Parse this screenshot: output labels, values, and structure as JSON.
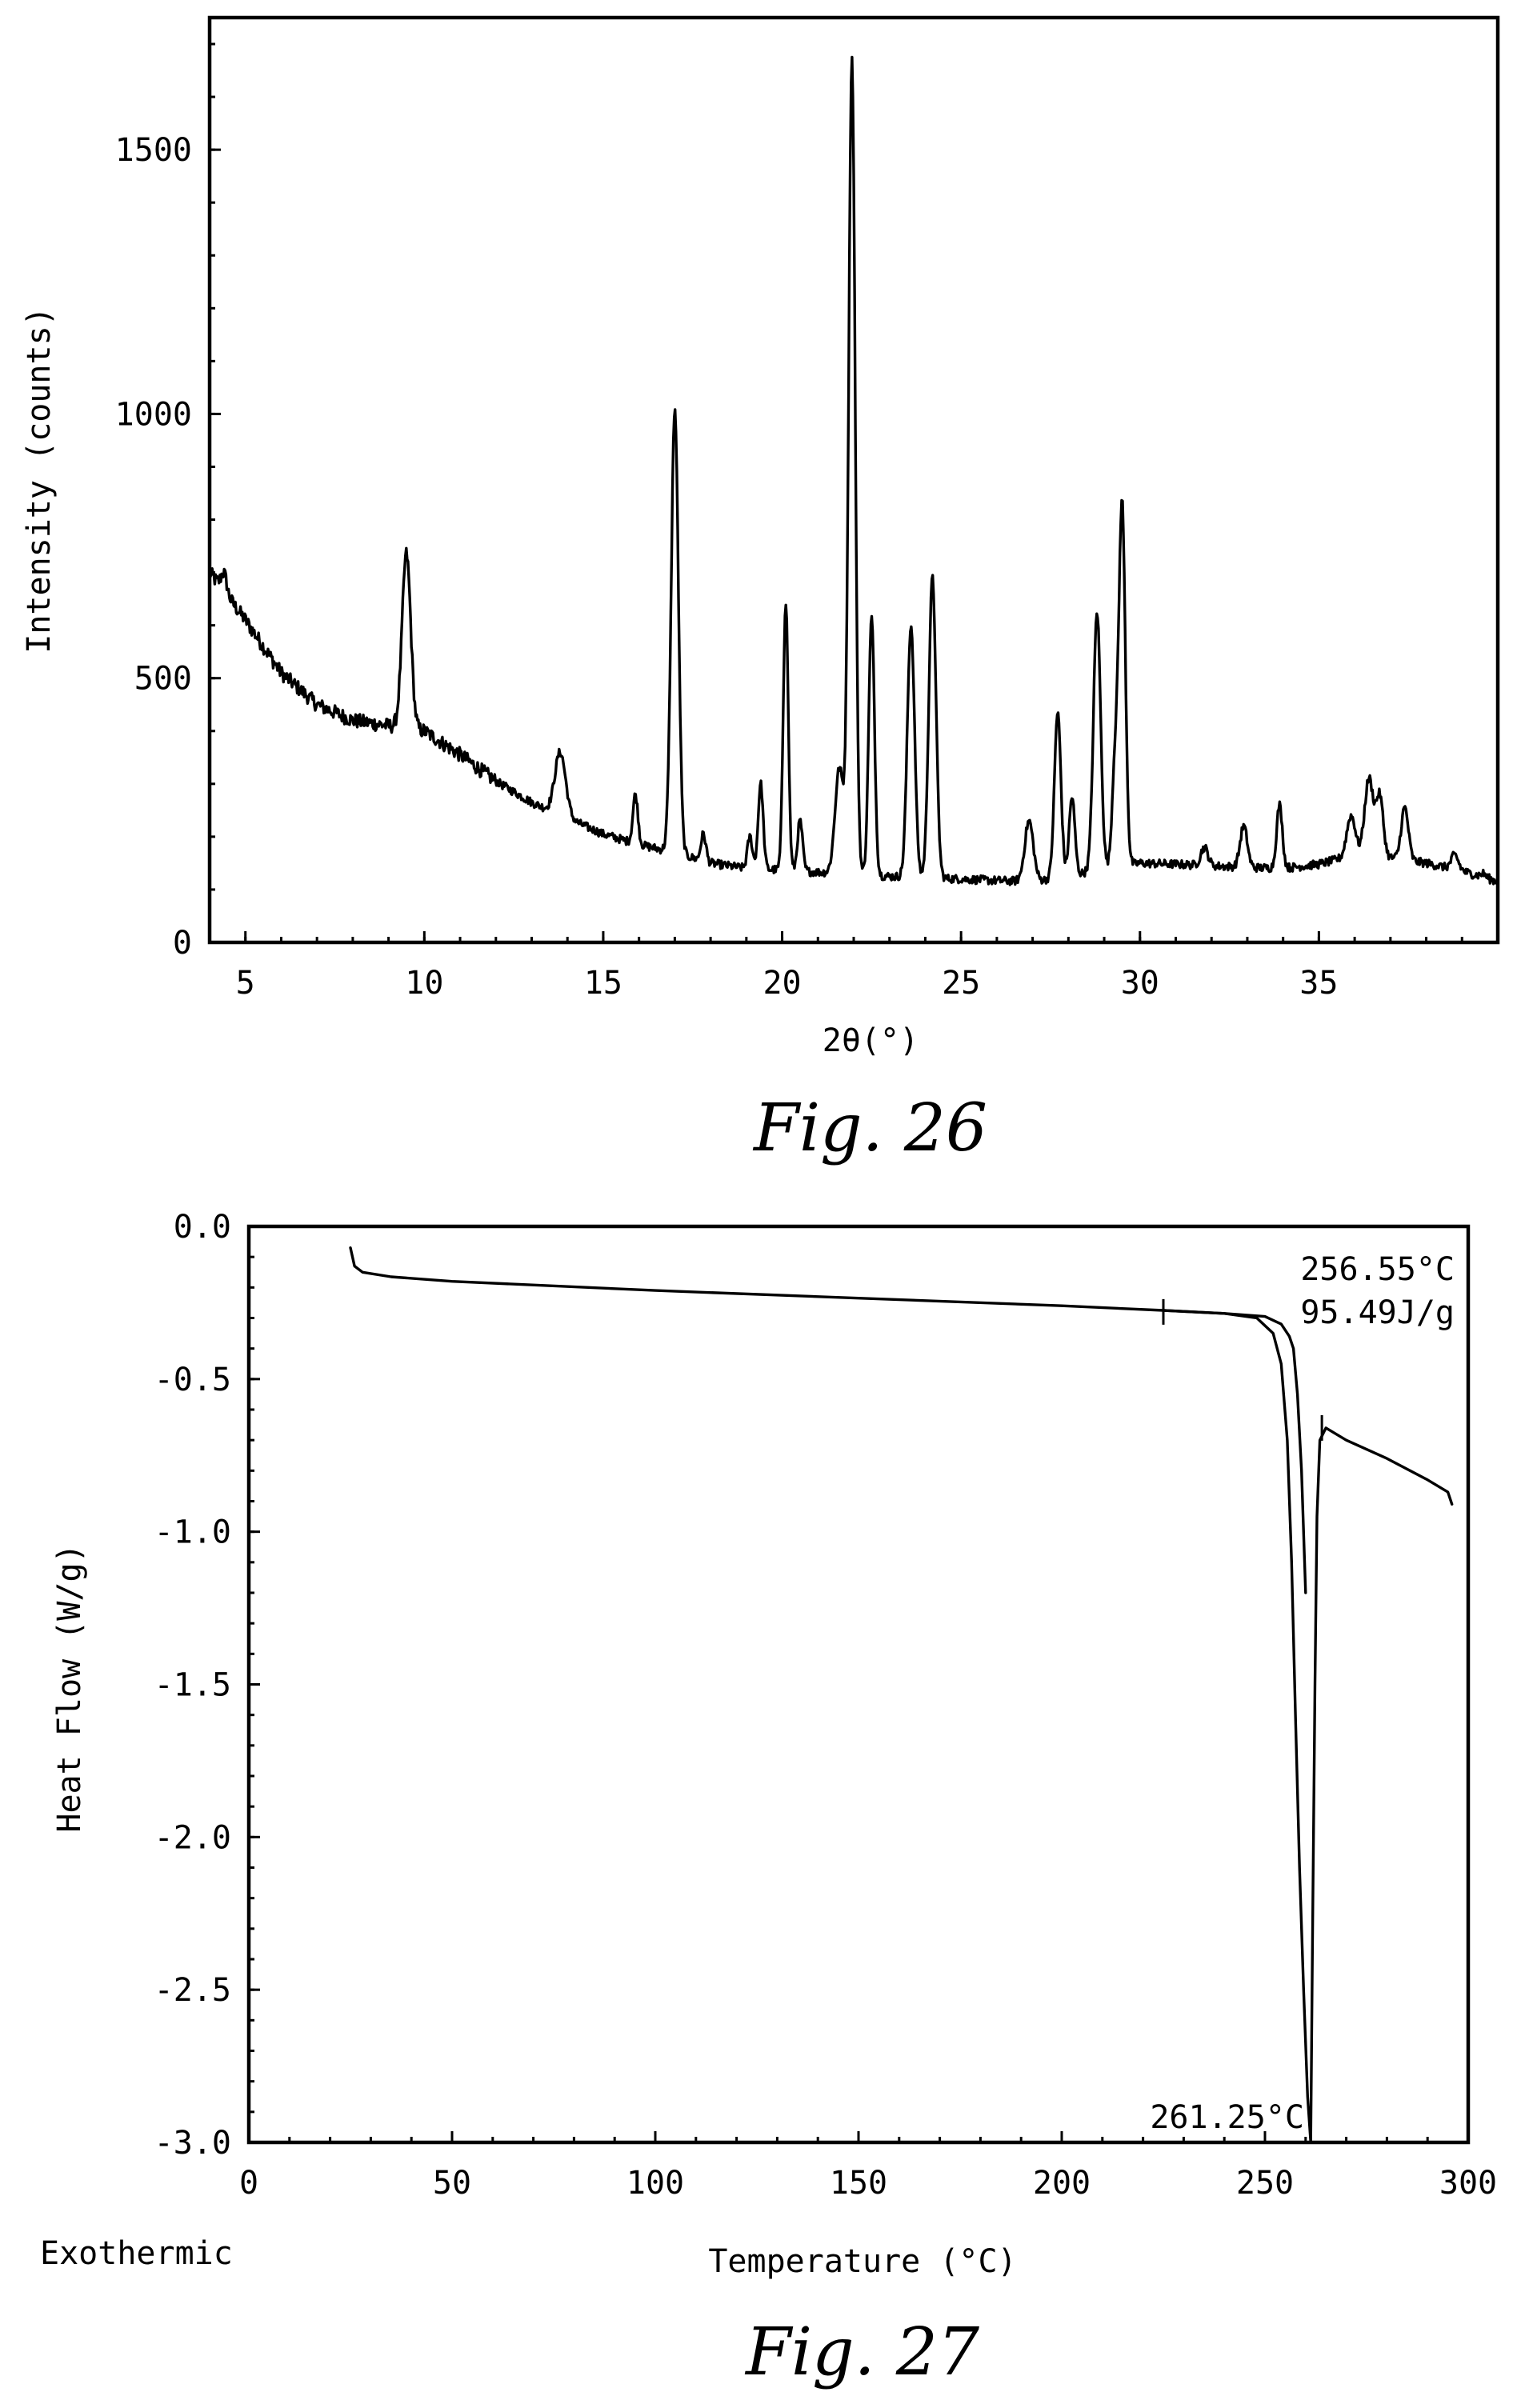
{
  "chart_data": [
    {
      "type": "line",
      "figure_label": "Fig. 26",
      "xlabel": "2θ(°)",
      "ylabel": "Intensity (counts)",
      "xlim": [
        4,
        40
      ],
      "ylim": [
        0,
        1750
      ],
      "xticks": [
        5,
        10,
        15,
        20,
        25,
        30,
        35
      ],
      "xtick_labels": [
        "5",
        "10",
        "15",
        "20",
        "25",
        "30",
        "35"
      ],
      "yticks": [
        0,
        500,
        1000,
        1500
      ],
      "ytick_labels": [
        "0",
        "500",
        "1000",
        "1500"
      ],
      "grid": false,
      "baseline": [
        [
          4.0,
          700
        ],
        [
          5.0,
          610
        ],
        [
          6.0,
          510
        ],
        [
          7.0,
          450
        ],
        [
          8.0,
          420
        ],
        [
          9.0,
          410
        ],
        [
          10.0,
          400
        ],
        [
          11.0,
          355
        ],
        [
          12.0,
          305
        ],
        [
          13.0,
          265
        ],
        [
          14.0,
          235
        ],
        [
          15.0,
          205
        ],
        [
          16.0,
          185
        ],
        [
          17.0,
          170
        ],
        [
          18.0,
          150
        ],
        [
          19.0,
          140
        ],
        [
          20.0,
          137
        ],
        [
          21.0,
          133
        ],
        [
          22.0,
          130
        ],
        [
          23.0,
          125
        ],
        [
          24.0,
          122
        ],
        [
          25.0,
          120
        ],
        [
          26.0,
          117
        ],
        [
          27.0,
          115
        ],
        [
          28.0,
          125
        ],
        [
          29.0,
          140
        ],
        [
          30.0,
          150
        ],
        [
          31.0,
          148
        ],
        [
          32.0,
          145
        ],
        [
          33.0,
          142
        ],
        [
          34.0,
          140
        ],
        [
          35.0,
          148
        ],
        [
          36.0,
          165
        ],
        [
          37.0,
          160
        ],
        [
          38.0,
          150
        ],
        [
          39.0,
          135
        ],
        [
          40.0,
          115
        ]
      ],
      "peaks": [
        [
          4.4,
          699,
          0.08
        ],
        [
          9.5,
          735,
          0.12
        ],
        [
          13.8,
          360,
          0.15
        ],
        [
          15.9,
          280,
          0.07
        ],
        [
          17.0,
          1010,
          0.1
        ],
        [
          17.8,
          205,
          0.07
        ],
        [
          19.1,
          200,
          0.07
        ],
        [
          19.4,
          300,
          0.07
        ],
        [
          20.1,
          645,
          0.07
        ],
        [
          20.5,
          230,
          0.07
        ],
        [
          21.6,
          330,
          0.12
        ],
        [
          21.95,
          1670,
          0.09
        ],
        [
          22.5,
          615,
          0.08
        ],
        [
          23.6,
          600,
          0.1
        ],
        [
          24.2,
          690,
          0.1
        ],
        [
          26.9,
          230,
          0.12
        ],
        [
          27.7,
          435,
          0.09
        ],
        [
          28.1,
          275,
          0.08
        ],
        [
          28.8,
          625,
          0.1
        ],
        [
          29.3,
          330,
          0.08
        ],
        [
          29.5,
          830,
          0.09
        ],
        [
          31.8,
          180,
          0.1
        ],
        [
          32.9,
          220,
          0.1
        ],
        [
          33.9,
          260,
          0.08
        ],
        [
          35.9,
          240,
          0.12
        ],
        [
          36.4,
          310,
          0.12
        ],
        [
          36.7,
          275,
          0.1
        ],
        [
          37.4,
          255,
          0.1
        ],
        [
          38.8,
          165,
          0.1
        ],
        [
          39.6,
          130,
          0.08
        ]
      ]
    },
    {
      "type": "line",
      "figure_label": "Fig. 27",
      "xlabel": "Temperature (°C)",
      "ylabel": "Heat Flow (W/g)",
      "below_axis_note": "Exothermic",
      "xlim": [
        0,
        300
      ],
      "ylim": [
        -3.0,
        0.0
      ],
      "xticks": [
        0,
        50,
        100,
        150,
        200,
        250,
        300
      ],
      "xtick_labels": [
        "0",
        "50",
        "100",
        "150",
        "200",
        "250",
        "300"
      ],
      "yticks": [
        0.0,
        -0.5,
        -1.0,
        -1.5,
        -2.0,
        -2.5,
        -3.0
      ],
      "ytick_labels": [
        "0.0",
        "-0.5",
        "-1.0",
        "-1.5",
        "-2.0",
        "-2.5",
        "-3.0"
      ],
      "grid": false,
      "curve": [
        [
          25.0,
          -0.07
        ],
        [
          26.0,
          -0.13
        ],
        [
          28.0,
          -0.15
        ],
        [
          35.0,
          -0.165
        ],
        [
          50.0,
          -0.18
        ],
        [
          100.0,
          -0.21
        ],
        [
          150.0,
          -0.235
        ],
        [
          200.0,
          -0.26
        ],
        [
          225.0,
          -0.275
        ],
        [
          240.0,
          -0.285
        ],
        [
          248.0,
          -0.3
        ],
        [
          252.0,
          -0.35
        ],
        [
          254.0,
          -0.45
        ],
        [
          255.5,
          -0.7
        ],
        [
          256.55,
          -1.1
        ],
        [
          257.5,
          -1.6
        ],
        [
          258.5,
          -2.1
        ],
        [
          259.5,
          -2.5
        ],
        [
          260.5,
          -2.85
        ],
        [
          261.25,
          -3.0
        ],
        [
          261.8,
          -2.2
        ],
        [
          262.3,
          -1.5
        ],
        [
          262.8,
          -0.95
        ],
        [
          263.5,
          -0.7
        ],
        [
          265.0,
          -0.66
        ],
        [
          270.0,
          -0.7
        ],
        [
          280.0,
          -0.76
        ],
        [
          290.0,
          -0.83
        ],
        [
          295.0,
          -0.87
        ],
        [
          296.0,
          -0.91
        ]
      ],
      "baseline_segment": [
        [
          225.0,
          -0.275
        ],
        [
          240.0,
          -0.285
        ],
        [
          250.0,
          -0.295
        ],
        [
          254.0,
          -0.32
        ],
        [
          256.0,
          -0.36
        ],
        [
          257.0,
          -0.4
        ],
        [
          258.0,
          -0.55
        ],
        [
          259.0,
          -0.8
        ],
        [
          260.0,
          -1.2
        ]
      ],
      "integration_markers": [
        [
          225.0,
          -0.28
        ],
        [
          264.0,
          -0.66
        ]
      ],
      "annotations": [
        {
          "text": "256.55°C",
          "at": [
            256.55,
            -0.35
          ]
        },
        {
          "text": "95.49J/g",
          "at": [
            256.55,
            -0.35
          ]
        },
        {
          "text": "261.25°C",
          "at": [
            261.25,
            -3.0
          ]
        }
      ]
    }
  ]
}
